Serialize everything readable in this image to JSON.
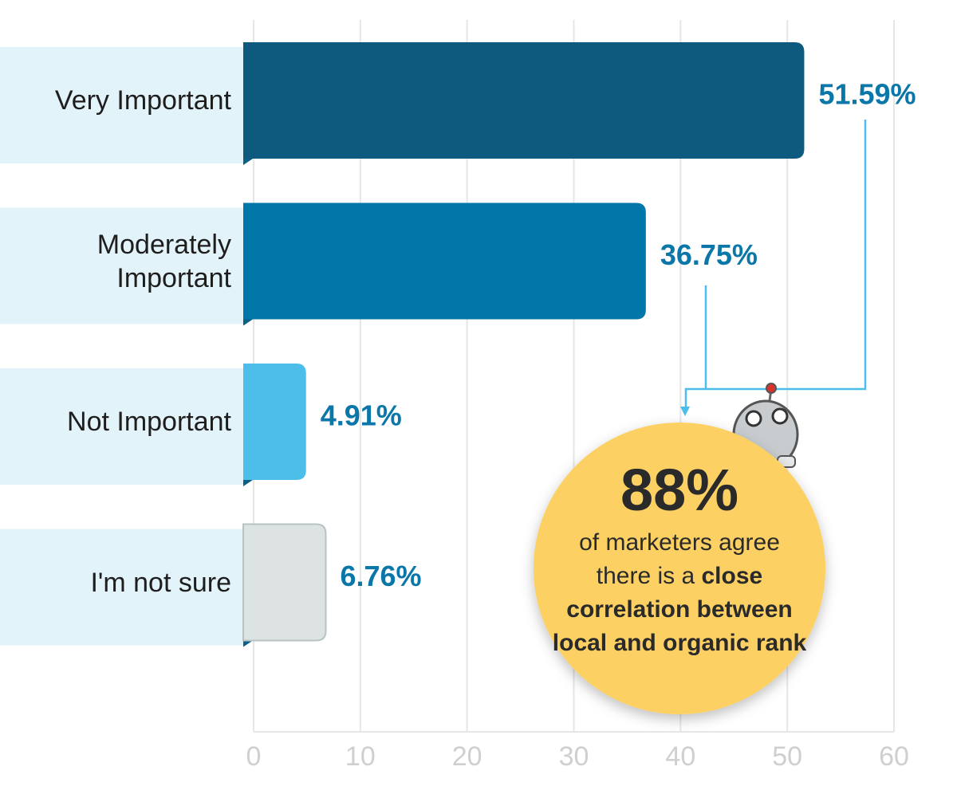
{
  "chart_data": {
    "type": "hbar",
    "categories": [
      "Very Important",
      "Moderately Important",
      "Not Important",
      "I'm not sure"
    ],
    "values": [
      51.59,
      36.75,
      4.91,
      6.76
    ],
    "value_labels": [
      "51.59%",
      "36.75%",
      "4.91%",
      "6.76%"
    ],
    "colors": [
      "#0d5a7e",
      "#0077a8",
      "#4dbde9",
      "#dde3e3"
    ],
    "xlim": [
      0,
      60
    ],
    "xticks": [
      0,
      10,
      20,
      30,
      40,
      50,
      60
    ],
    "grid": true,
    "annotation": {
      "headline": "88%",
      "parts": [
        {
          "text": "of marketers agree there is a ",
          "bold": false
        },
        {
          "text": "close correlation between local and organic rank",
          "bold": true
        }
      ]
    }
  }
}
